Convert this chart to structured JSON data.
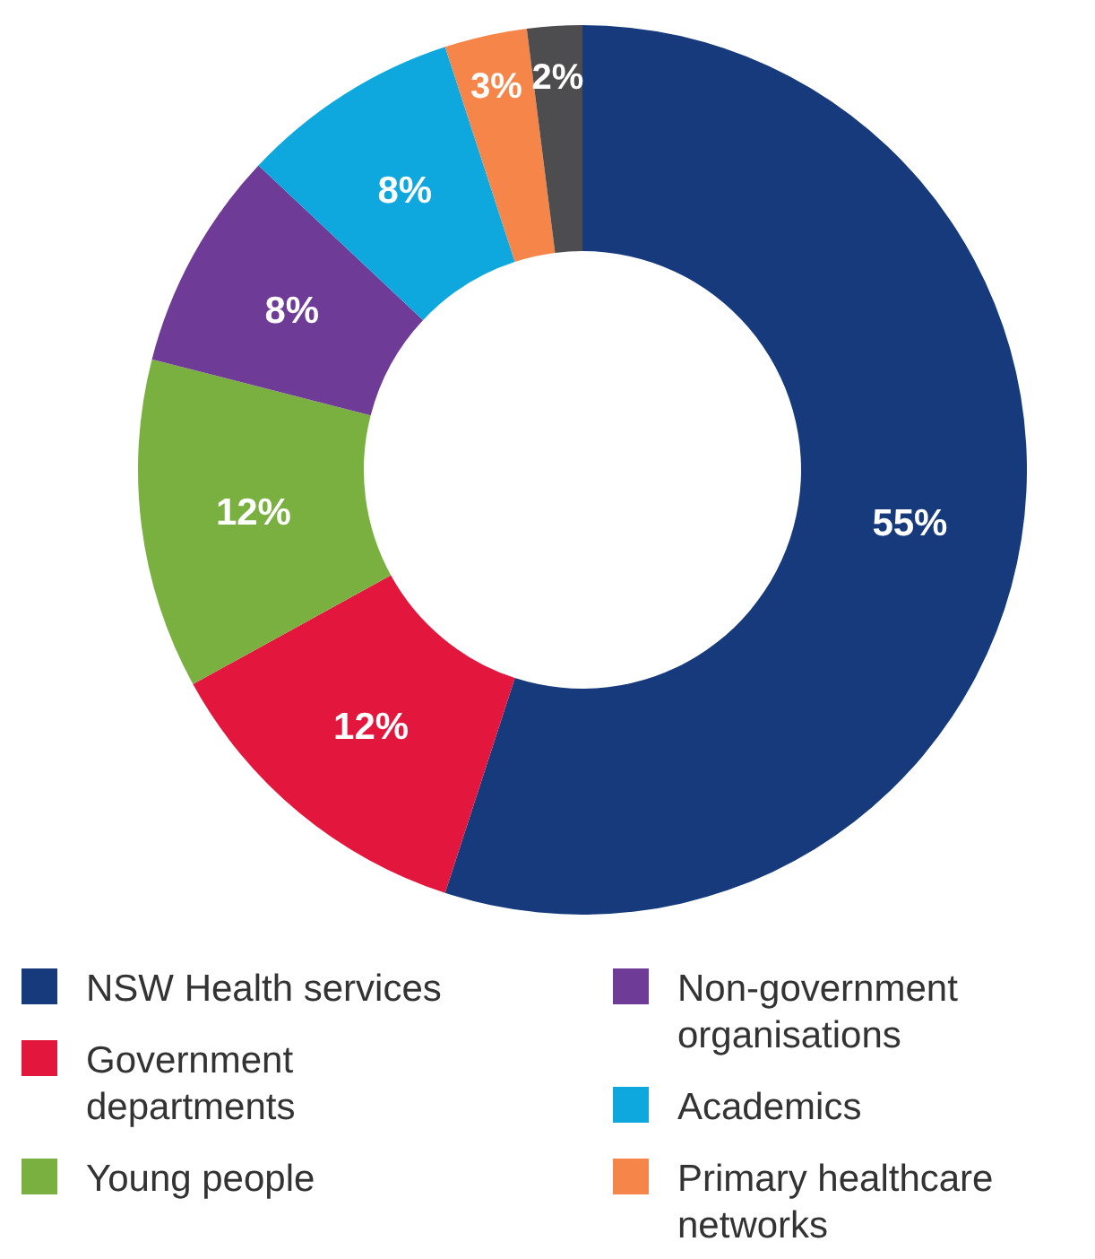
{
  "chart_data": {
    "type": "donut",
    "categories": [
      "NSW Health services",
      "Government departments",
      "Young people",
      "Non-government organisations",
      "Academics",
      "Primary healthcare networks",
      null
    ],
    "values": [
      55,
      12,
      12,
      8,
      8,
      3,
      2
    ],
    "colors": [
      "#163a7c",
      "#e3173e",
      "#7ab040",
      "#6e3b96",
      "#0ea8df",
      "#f58549",
      "#4d4d4f"
    ],
    "value_labels": [
      "55%",
      "12%",
      "12%",
      "8%",
      "8%",
      "3%",
      "2%"
    ],
    "legend": "bottom"
  }
}
